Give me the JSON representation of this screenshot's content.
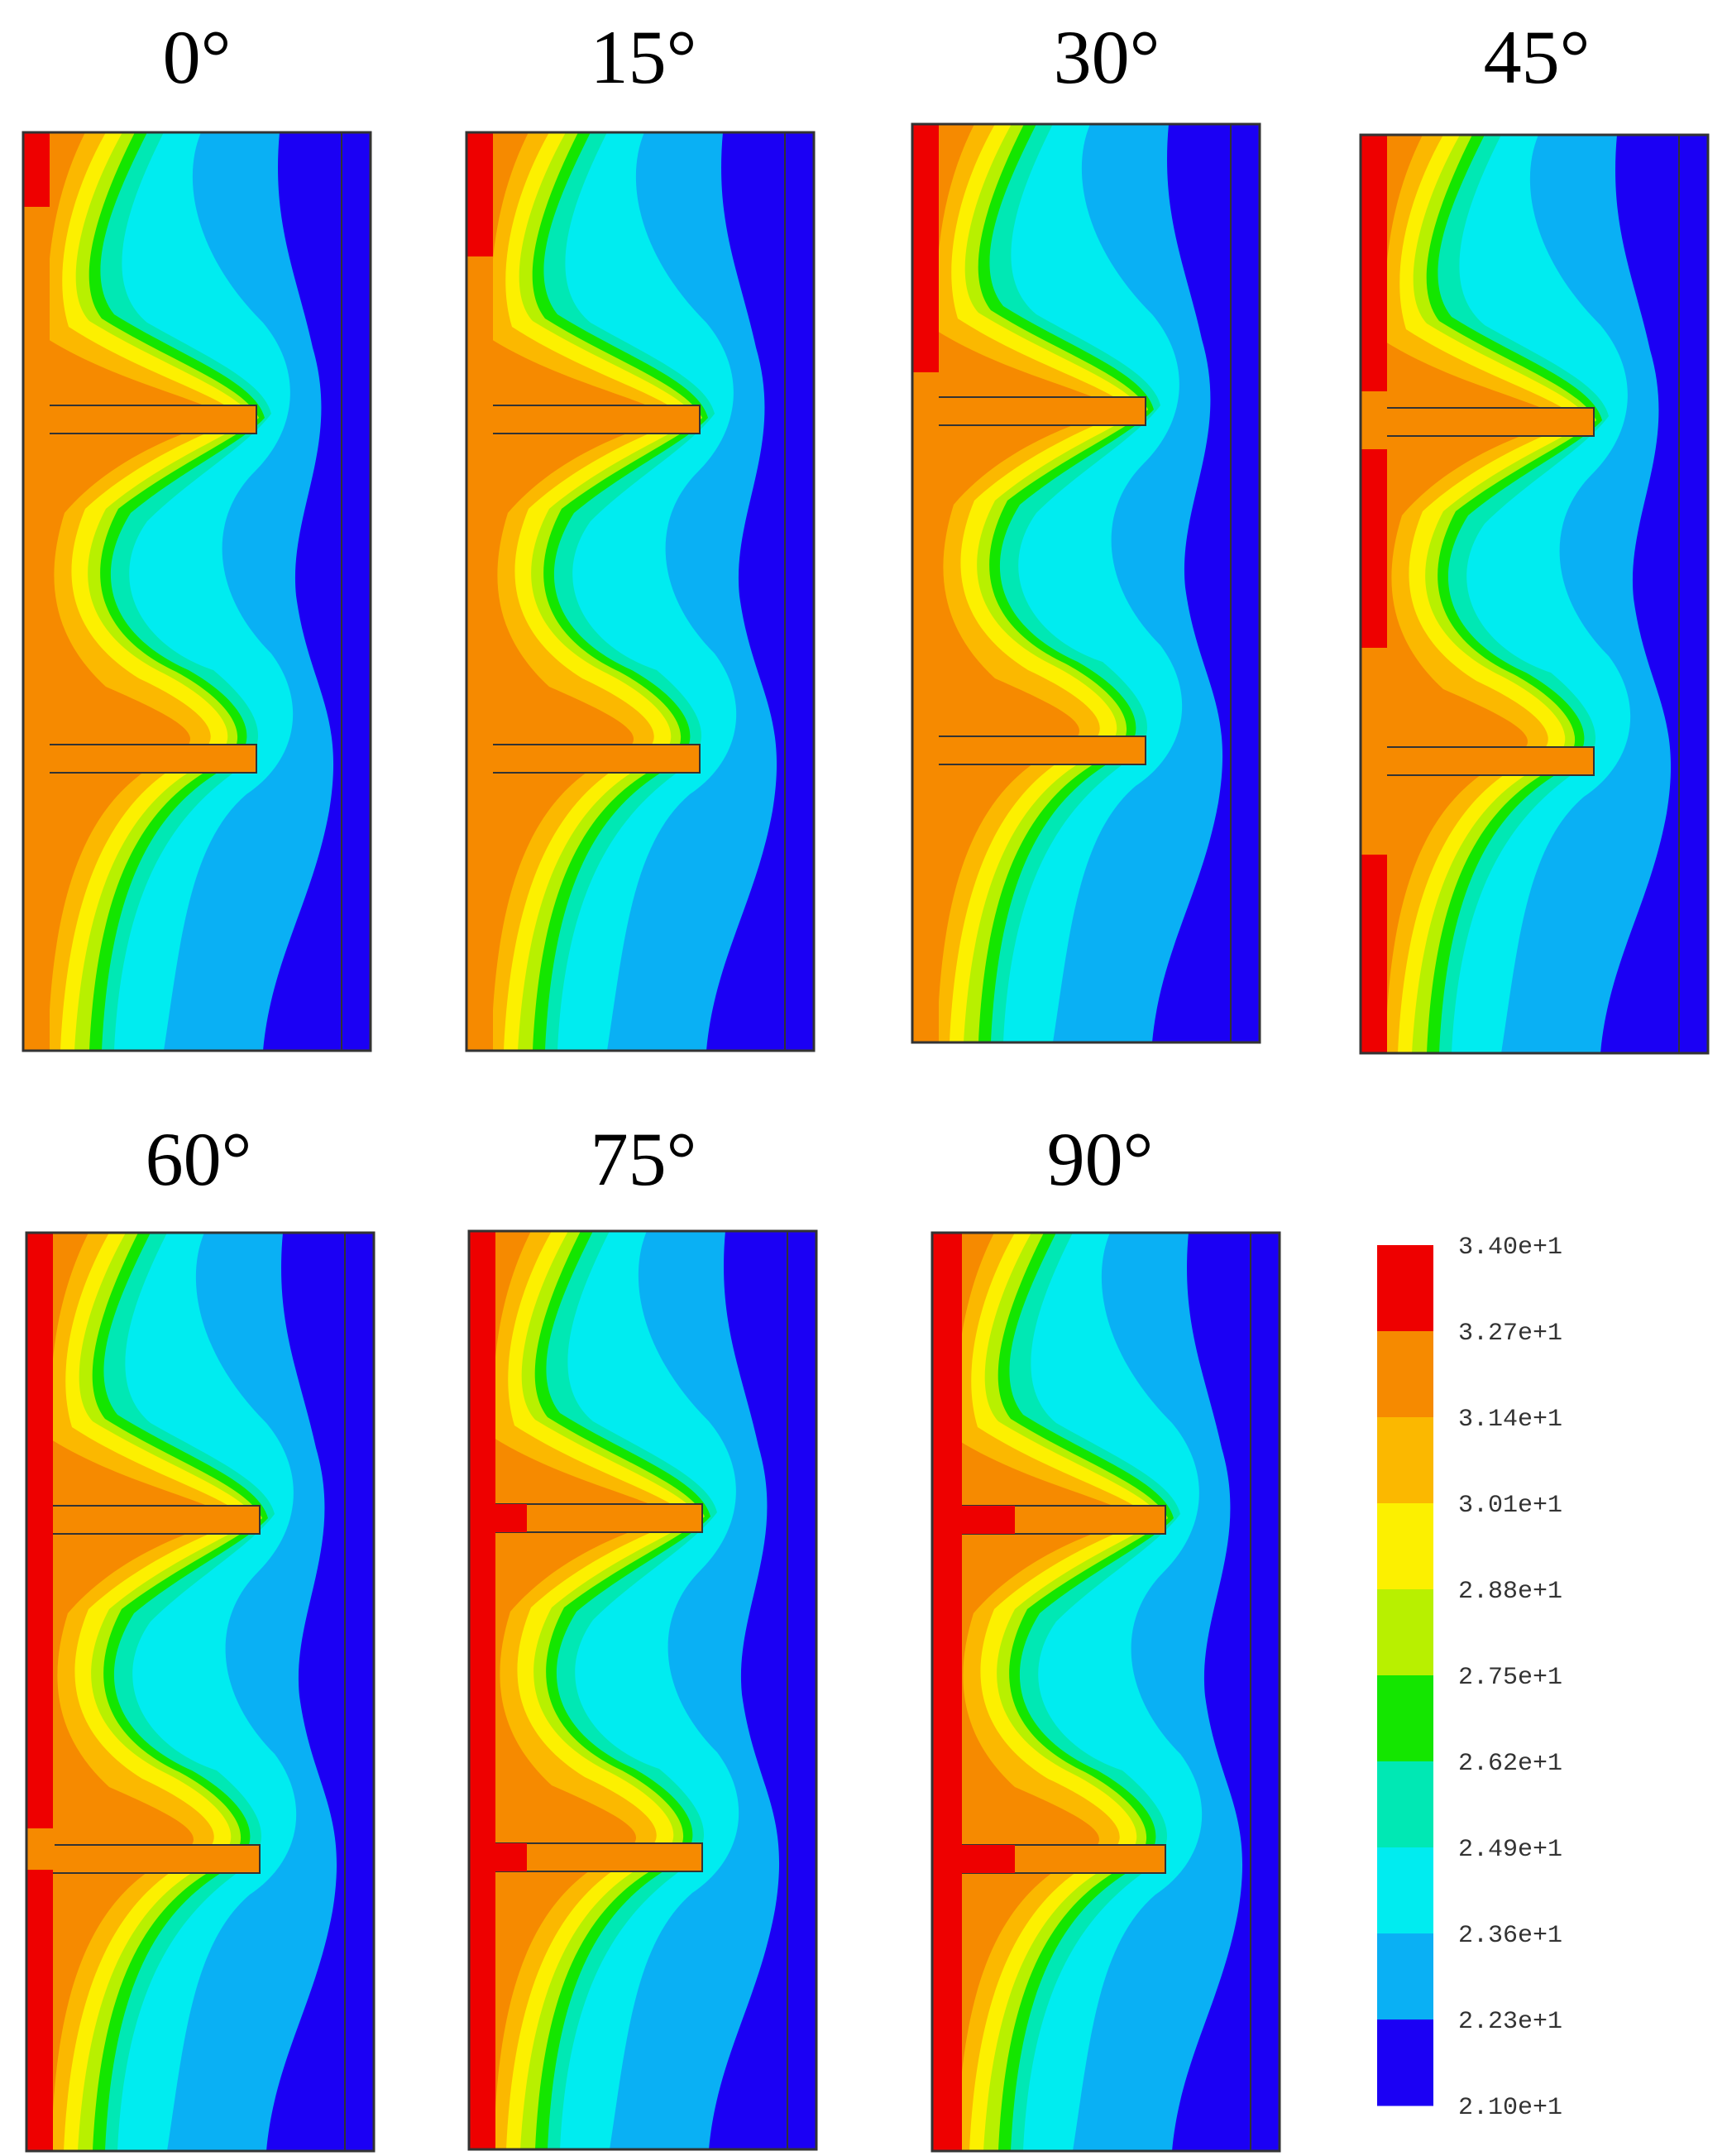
{
  "figure": {
    "panels": [
      {
        "label": "0°",
        "cold_side_color": "#1b00f4"
      },
      {
        "label": "15°",
        "cold_side_color": "#1b00f4"
      },
      {
        "label": "30°",
        "cold_side_color": "#1b00f4"
      },
      {
        "label": "45°",
        "cold_side_color": "#1b00f4"
      },
      {
        "label": "60°",
        "cold_side_color": "#1b00f4"
      },
      {
        "label": "75°",
        "cold_side_color": "#1b00f4"
      },
      {
        "label": "90°",
        "cold_side_color": "#1b00f4"
      }
    ],
    "colorbar": {
      "labels": [
        "3.40e+1",
        "3.27e+1",
        "3.14e+1",
        "3.01e+1",
        "2.88e+1",
        "2.75e+1",
        "2.62e+1",
        "2.49e+1",
        "2.36e+1",
        "2.23e+1",
        "2.10e+1"
      ],
      "colors": [
        "#ee0000",
        "#f68a00",
        "#fbb800",
        "#fcf000",
        "#b8f000",
        "#14e600",
        "#00e8b4",
        "#00ecf0",
        "#0ab0f4",
        "#1b00f4"
      ]
    },
    "palette": {
      "red": "#ee0000",
      "orange": "#f68a00",
      "gold": "#fbb800",
      "yellow": "#fcf000",
      "lime": "#b8f000",
      "green": "#14e600",
      "teal": "#00e8b4",
      "cyan": "#00ecf0",
      "sky": "#0ab0f4",
      "blue": "#1b00f4"
    }
  }
}
